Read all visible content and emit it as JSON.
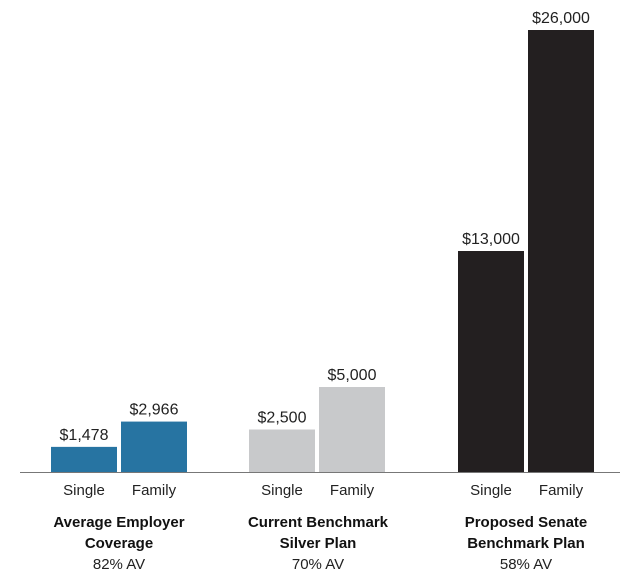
{
  "chart_data": {
    "type": "bar",
    "title": "",
    "xlabel": "",
    "ylabel": "",
    "ylim": [
      0,
      26000
    ],
    "grid": false,
    "legend": "none",
    "groups": [
      {
        "title_line1": "Average Employer",
        "title_line2": "Coverage",
        "av": "82% AV",
        "color": "#2774a2",
        "bars": [
          {
            "category": "Single",
            "value": 1478,
            "label": "$1,478"
          },
          {
            "category": "Family",
            "value": 2966,
            "label": "$2,966"
          }
        ]
      },
      {
        "title_line1": "Current Benchmark",
        "title_line2": "Silver Plan",
        "av": "70% AV",
        "color": "#c8c9cb",
        "bars": [
          {
            "category": "Single",
            "value": 2500,
            "label": "$2,500"
          },
          {
            "category": "Family",
            "value": 5000,
            "label": "$5,000"
          }
        ]
      },
      {
        "title_line1": "Proposed Senate",
        "title_line2": "Benchmark Plan",
        "av": "58% AV",
        "color": "#231f20",
        "bars": [
          {
            "category": "Single",
            "value": 13000,
            "label": "$13,000"
          },
          {
            "category": "Family",
            "value": 26000,
            "label": "$26,000"
          }
        ]
      }
    ]
  }
}
